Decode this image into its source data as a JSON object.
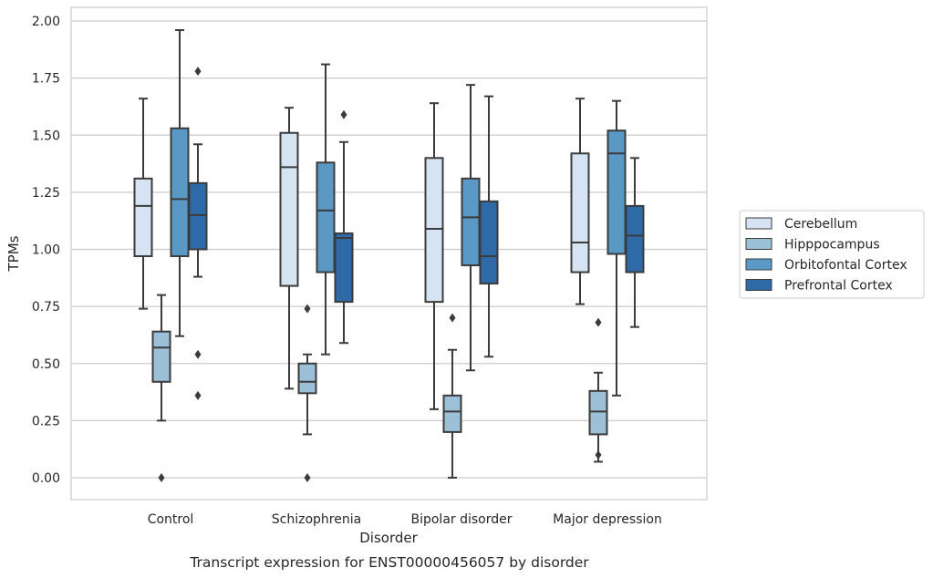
{
  "chart_data": {
    "type": "box",
    "xlabel": "Disorder",
    "ylabel": "TPMs",
    "caption": "Transcript expression for ENST00000456057 by disorder",
    "ylim": [
      -0.1,
      2.05
    ],
    "yticks": [
      "0.00",
      "0.25",
      "0.50",
      "0.75",
      "1.00",
      "1.25",
      "1.50",
      "1.75",
      "2.00"
    ],
    "grid": true,
    "legend_position": "right",
    "categories": [
      "Control",
      "Schizophrenia",
      "Bipolar disorder",
      "Major depression"
    ],
    "series": [
      {
        "name": "Cerebellum",
        "color": "#d6e3f2",
        "boxes": [
          {
            "whislo": 0.74,
            "q1": 0.97,
            "med": 1.19,
            "q3": 1.31,
            "whishi": 1.66,
            "fliers": []
          },
          {
            "whislo": 0.39,
            "q1": 0.84,
            "med": 1.36,
            "q3": 1.51,
            "whishi": 1.62,
            "fliers": []
          },
          {
            "whislo": 0.3,
            "q1": 0.77,
            "med": 1.09,
            "q3": 1.4,
            "whishi": 1.64,
            "fliers": []
          },
          {
            "whislo": 0.76,
            "q1": 0.9,
            "med": 1.03,
            "q3": 1.42,
            "whishi": 1.66,
            "fliers": []
          }
        ]
      },
      {
        "name": "Hipppocampus",
        "color": "#9bc0d8",
        "boxes": [
          {
            "whislo": 0.25,
            "q1": 0.42,
            "med": 0.57,
            "q3": 0.64,
            "whishi": 0.8,
            "fliers": [
              0.0
            ]
          },
          {
            "whislo": 0.19,
            "q1": 0.37,
            "med": 0.42,
            "q3": 0.5,
            "whishi": 0.54,
            "fliers": [
              0.74,
              0.0
            ]
          },
          {
            "whislo": 0.0,
            "q1": 0.2,
            "med": 0.29,
            "q3": 0.36,
            "whishi": 0.56,
            "fliers": [
              0.7
            ]
          },
          {
            "whislo": 0.07,
            "q1": 0.19,
            "med": 0.29,
            "q3": 0.38,
            "whishi": 0.46,
            "fliers": [
              0.68,
              0.1
            ]
          }
        ]
      },
      {
        "name": "Orbitofontal Cortex",
        "color": "#5a99c6",
        "boxes": [
          {
            "whislo": 0.62,
            "q1": 0.97,
            "med": 1.22,
            "q3": 1.53,
            "whishi": 1.96,
            "fliers": []
          },
          {
            "whislo": 0.54,
            "q1": 0.9,
            "med": 1.17,
            "q3": 1.38,
            "whishi": 1.81,
            "fliers": []
          },
          {
            "whislo": 0.47,
            "q1": 0.93,
            "med": 1.14,
            "q3": 1.31,
            "whishi": 1.72,
            "fliers": []
          },
          {
            "whislo": 0.36,
            "q1": 0.98,
            "med": 1.42,
            "q3": 1.52,
            "whishi": 1.65,
            "fliers": []
          }
        ]
      },
      {
        "name": "Prefrontal Cortex",
        "color": "#2e6aa8",
        "boxes": [
          {
            "whislo": 0.88,
            "q1": 1.0,
            "med": 1.15,
            "q3": 1.29,
            "whishi": 1.46,
            "fliers": [
              1.78,
              0.54,
              0.36
            ]
          },
          {
            "whislo": 0.59,
            "q1": 0.77,
            "med": 1.05,
            "q3": 1.07,
            "whishi": 1.47,
            "fliers": [
              1.59
            ]
          },
          {
            "whislo": 0.53,
            "q1": 0.85,
            "med": 0.97,
            "q3": 1.21,
            "whishi": 1.67,
            "fliers": []
          },
          {
            "whislo": 0.66,
            "q1": 0.9,
            "med": 1.06,
            "q3": 1.19,
            "whishi": 1.4,
            "fliers": []
          }
        ]
      }
    ]
  }
}
